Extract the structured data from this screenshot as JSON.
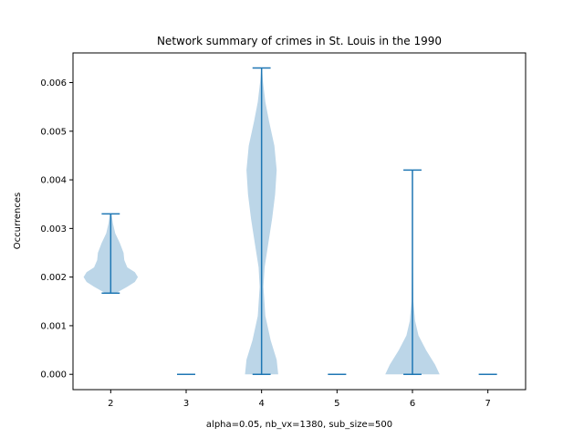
{
  "chart_data": {
    "type": "violin",
    "title": "Network summary of crimes in St. Louis in the 1990",
    "xlabel": "alpha=0.05, nb_vx=1380, sub_size=500",
    "ylabel": "Occurrences",
    "xlim": [
      1.5,
      7.5
    ],
    "ylim": [
      -0.000315,
      0.00661
    ],
    "xticks": [
      2,
      3,
      4,
      5,
      6,
      7
    ],
    "yticks": [
      0.0,
      0.001,
      0.002,
      0.003,
      0.004,
      0.005,
      0.006
    ],
    "ytick_labels": [
      "0.000",
      "0.001",
      "0.002",
      "0.003",
      "0.004",
      "0.005",
      "0.006"
    ],
    "grid": false,
    "colors": {
      "body": "#bcd6e8",
      "line": "#1f77b4",
      "axis": "#000000"
    },
    "violins": [
      {
        "position": 2,
        "min": 0.00167,
        "max": 0.0033,
        "profile": [
          [
            0.00167,
            0.07
          ],
          [
            0.0018,
            0.22
          ],
          [
            0.0019,
            0.32
          ],
          [
            0.002,
            0.36
          ],
          [
            0.0021,
            0.32
          ],
          [
            0.0022,
            0.22
          ],
          [
            0.00235,
            0.18
          ],
          [
            0.0025,
            0.17
          ],
          [
            0.0027,
            0.12
          ],
          [
            0.0029,
            0.06
          ],
          [
            0.0031,
            0.03
          ],
          [
            0.0033,
            0.01
          ]
        ]
      },
      {
        "position": 3,
        "min": 0.0,
        "max": 0.0,
        "profile": []
      },
      {
        "position": 4,
        "min": 0.0,
        "max": 0.0063,
        "profile": [
          [
            0.0,
            0.22
          ],
          [
            0.0003,
            0.2
          ],
          [
            0.0007,
            0.12
          ],
          [
            0.0012,
            0.05
          ],
          [
            0.0018,
            0.025
          ],
          [
            0.0022,
            0.04
          ],
          [
            0.0027,
            0.09
          ],
          [
            0.0032,
            0.14
          ],
          [
            0.0037,
            0.18
          ],
          [
            0.0042,
            0.2
          ],
          [
            0.0047,
            0.17
          ],
          [
            0.0052,
            0.1
          ],
          [
            0.0056,
            0.05
          ],
          [
            0.006,
            0.02
          ],
          [
            0.0063,
            0.005
          ]
        ]
      },
      {
        "position": 5,
        "min": 0.0,
        "max": 0.0,
        "profile": []
      },
      {
        "position": 6,
        "min": 0.0,
        "max": 0.0042,
        "profile": [
          [
            0.0,
            0.36
          ],
          [
            0.0002,
            0.3
          ],
          [
            0.0005,
            0.18
          ],
          [
            0.0008,
            0.08
          ],
          [
            0.0011,
            0.035
          ],
          [
            0.0015,
            0.012
          ],
          [
            0.002,
            0.008
          ],
          [
            0.0025,
            0.006
          ],
          [
            0.003,
            0.006
          ],
          [
            0.0035,
            0.005
          ],
          [
            0.004,
            0.003
          ],
          [
            0.0042,
            0.001
          ]
        ]
      },
      {
        "position": 7,
        "min": 0.0,
        "max": 0.0,
        "profile": []
      }
    ]
  }
}
